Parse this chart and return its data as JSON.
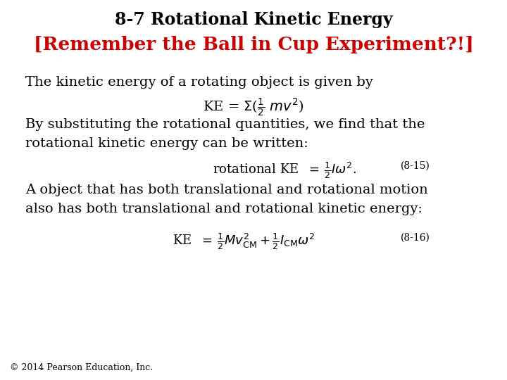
{
  "title_line1": "8-7 Rotational Kinetic Energy",
  "title_line2": "[Remember the Ball in Cup Experiment?!]",
  "title_color1": "#000000",
  "title_color2": "#cc0000",
  "body_text1": "The kinetic energy of a rotating object is given by",
  "body_eq1": "KE = Σ(½ mv²)",
  "body_text3a": "By substituting the rotational quantities, we find that the",
  "body_text3b": "rotational kinetic energy can be written:",
  "eq1_label": "(8-15)",
  "body_text4a": "A object that has both translational and rotational motion",
  "body_text4b": "also has both translational and rotational kinetic energy:",
  "eq2_label": "(8-16)",
  "footer": "© 2014 Pearson Education, Inc.",
  "bg_color": "#ffffff",
  "text_color": "#000000",
  "fontsize_title1": 17,
  "fontsize_title2": 19,
  "fontsize_body": 14,
  "fontsize_eq": 13,
  "fontsize_label": 10,
  "fontsize_footer": 9
}
